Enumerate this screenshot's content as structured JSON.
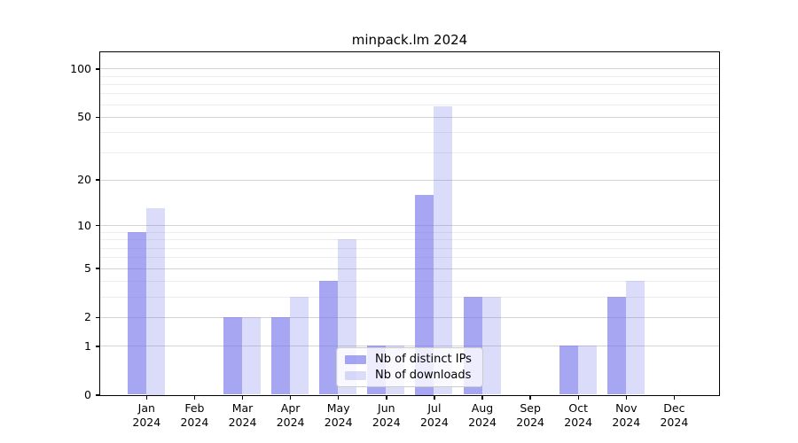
{
  "title": "minpack.lm 2024",
  "legend": {
    "items": [
      {
        "label": "Nb of distinct IPs",
        "swatch": "dark"
      },
      {
        "label": "Nb of downloads",
        "swatch": "light"
      }
    ]
  },
  "colors": {
    "bar_dark": "rgba(112,112,235,0.62)",
    "bar_light": "rgba(112,112,235,0.25)",
    "bar_dark_flat": "#a9a9f3",
    "bar_light_flat": "#dcdcf8",
    "grid_major": "#d3d3d3",
    "grid_minor": "#ededed",
    "axis": "#000000"
  },
  "chart_data": {
    "type": "bar",
    "title": "minpack.lm 2024",
    "categories": [
      "Jan 2024",
      "Feb 2024",
      "Mar 2024",
      "Apr 2024",
      "May 2024",
      "Jun 2024",
      "Jul 2024",
      "Aug 2024",
      "Sep 2024",
      "Oct 2024",
      "Nov 2024",
      "Dec 2024"
    ],
    "series": [
      {
        "name": "Nb of distinct IPs",
        "values": [
          9,
          0,
          2,
          2,
          4,
          1,
          16,
          3,
          0,
          1,
          3,
          0
        ]
      },
      {
        "name": "Nb of downloads",
        "values": [
          13,
          0,
          2,
          3,
          8,
          1,
          58,
          3,
          0,
          1,
          4,
          0
        ]
      }
    ],
    "xlabel": "",
    "ylabel": "",
    "yscale": "log1p",
    "yticks": [
      0,
      1,
      2,
      5,
      10,
      20,
      50,
      100
    ],
    "minor_gridlines": [
      3,
      4,
      6,
      7,
      8,
      9,
      30,
      40,
      60,
      70,
      80,
      90
    ],
    "major_gridlines": [
      1,
      2,
      5,
      10,
      20,
      50,
      100
    ],
    "ylim": [
      0,
      127
    ],
    "grid": true,
    "legend_position": "bottom-center"
  }
}
